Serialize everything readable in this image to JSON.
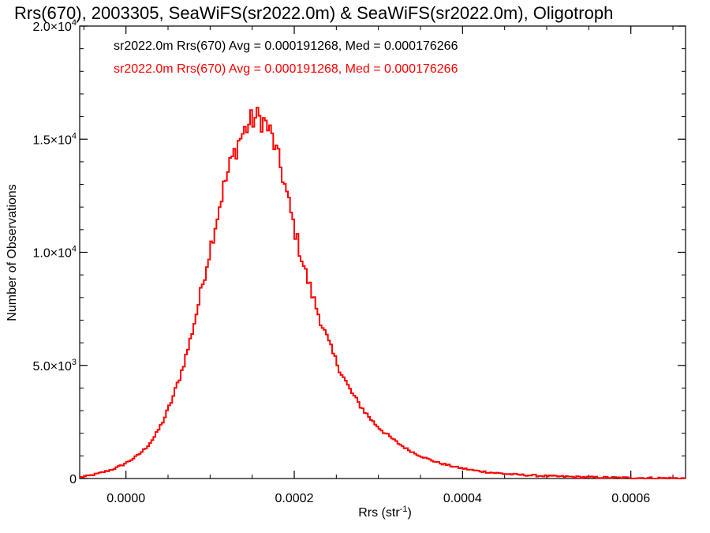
{
  "chart_data": {
    "type": "histogram",
    "title": "Rrs(670), 2003305, SeaWiFS(sr2022.0m) & SeaWiFS(sr2022.0m), Oligotroph",
    "xlabel": "Rrs (str",
    "xlabel_sup": "-1",
    "xlabel_suffix": ")",
    "ylabel": "Number of Observations",
    "xlim": [
      -5.5e-05,
      0.000665
    ],
    "ylim": [
      0,
      20000
    ],
    "x_ticks": [
      {
        "value": 0.0,
        "label": "0.0000"
      },
      {
        "value": 0.0002,
        "label": "0.0002"
      },
      {
        "value": 0.0004,
        "label": "0.0004"
      },
      {
        "value": 0.0006,
        "label": "0.0006"
      }
    ],
    "y_ticks": [
      {
        "value": 0,
        "mant": "0",
        "exp": ""
      },
      {
        "value": 5000,
        "mant": "5.0×10",
        "exp": "3"
      },
      {
        "value": 10000,
        "mant": "1.0×10",
        "exp": "4"
      },
      {
        "value": 15000,
        "mant": "1.5×10",
        "exp": "4"
      },
      {
        "value": 20000,
        "mant": "2.0×10",
        "exp": "4"
      }
    ],
    "grid": false,
    "legend": [
      {
        "text": "sr2022.0m Rrs(670) Avg = 0.000191268, Med = 0.000176266",
        "color": "#000000"
      },
      {
        "text": "sr2022.0m Rrs(670) Avg = 0.000191268, Med = 0.000176266",
        "color": "#ff0000"
      }
    ],
    "series": [
      {
        "color": "#ff0000",
        "anchor_x": [
          -5.5e-05,
          -4.5e-05,
          -3.5e-05,
          -2.5e-05,
          -1.5e-05,
          -5e-06,
          5e-06,
          1.5e-05,
          2.5e-05,
          3.5e-05,
          4.5e-05,
          5.5e-05,
          6.5e-05,
          7.5e-05,
          8.5e-05,
          9.5e-05,
          0.000105,
          0.000115,
          0.000125,
          0.000135,
          0.000145,
          0.00015,
          0.000155,
          0.00016,
          0.000165,
          0.00017,
          0.000175,
          0.00018,
          0.000185,
          0.000195,
          0.000205,
          0.000215,
          0.000225,
          0.000235,
          0.000245,
          0.000255,
          0.000265,
          0.000275,
          0.000285,
          0.000295,
          0.000305,
          0.000315,
          0.000325,
          0.000335,
          0.000345,
          0.000355,
          0.000365,
          0.000375,
          0.000395,
          0.000415,
          0.000435,
          0.000455,
          0.000475,
          0.000495,
          0.000515,
          0.000535,
          0.000555,
          0.000575,
          0.000595,
          0.000615,
          0.000635,
          0.000665
        ],
        "anchor_y": [
          50,
          110,
          200,
          300,
          420,
          580,
          800,
          1050,
          1400,
          1900,
          2600,
          3500,
          4600,
          5900,
          7500,
          9300,
          11000,
          12700,
          14000,
          15000,
          15600,
          15850,
          15950,
          15900,
          15750,
          15400,
          14950,
          14250,
          13600,
          11900,
          10300,
          8900,
          7700,
          6600,
          5600,
          4750,
          4000,
          3400,
          2900,
          2450,
          2100,
          1800,
          1520,
          1280,
          1080,
          920,
          780,
          660,
          480,
          350,
          260,
          195,
          150,
          115,
          90,
          70,
          55,
          42,
          33,
          26,
          20,
          12
        ],
        "bin_width": 2.5e-06
      }
    ]
  }
}
